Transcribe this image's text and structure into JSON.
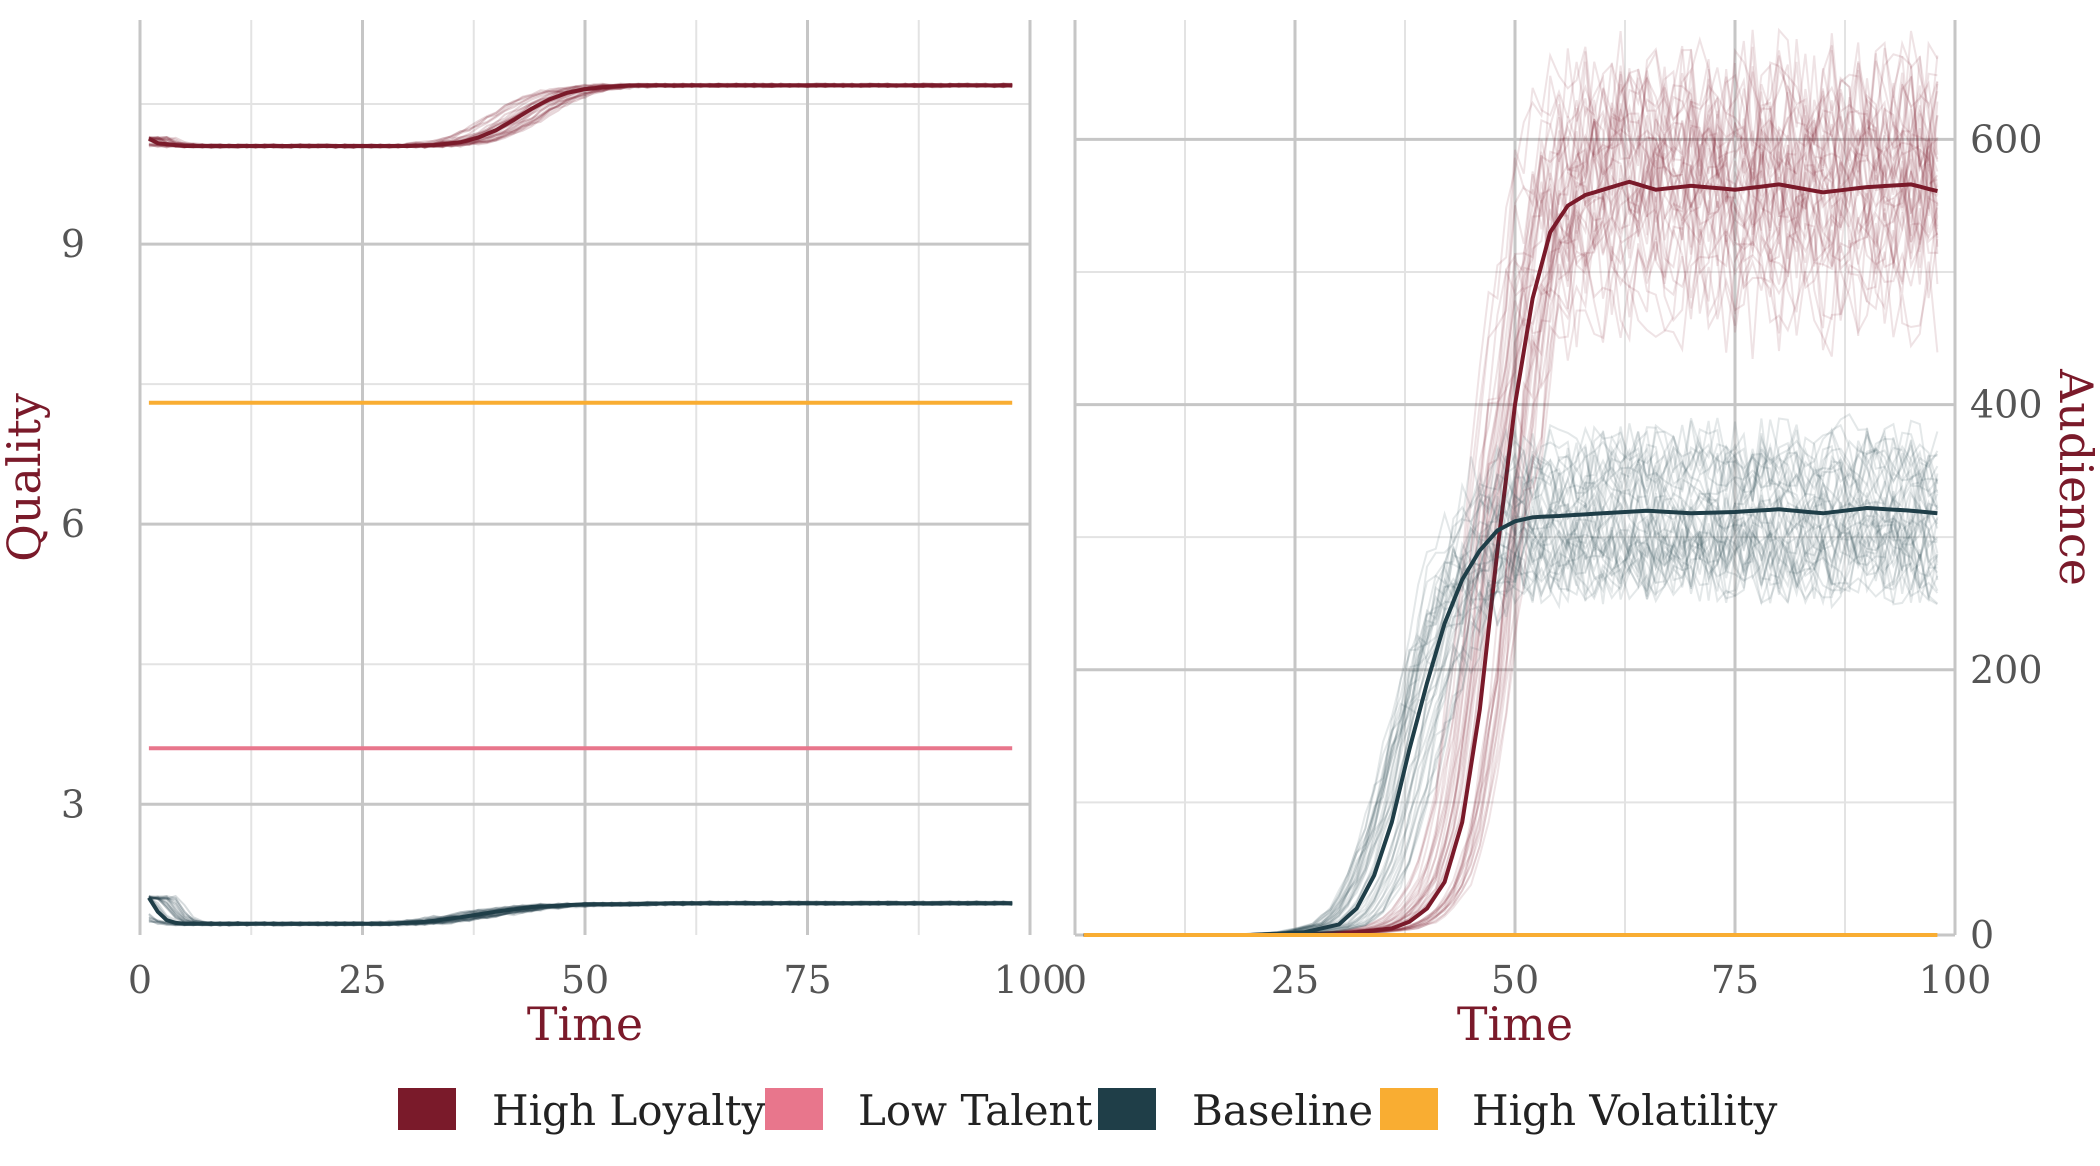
{
  "colors": {
    "High Loyalty": "#7a1a2a",
    "Low Talent": "#e8768c",
    "Baseline": "#1f3e48",
    "High Volatility": "#f9ad32",
    "axis_title": "#7a1a2a",
    "grid_major": "#c6c6c6",
    "grid_minor": "#e3e3e3"
  },
  "legend": {
    "items": [
      {
        "label": "High Loyalty",
        "color": "#7a1a2a"
      },
      {
        "label": "Low Talent",
        "color": "#e8768c"
      },
      {
        "label": "Baseline",
        "color": "#1f3e48"
      },
      {
        "label": "High Volatility",
        "color": "#f9ad32"
      }
    ]
  },
  "chart_data": [
    {
      "type": "line",
      "panel": "left",
      "xlabel": "Time",
      "ylabel": "Quality",
      "y_axis_side": "left",
      "xlim": [
        0,
        100
      ],
      "ylim": [
        1.6,
        11.4
      ],
      "x_ticks": [
        0,
        25,
        50,
        75,
        100
      ],
      "x_tick_labels": [
        "0",
        "25",
        "50",
        "75",
        "100"
      ],
      "y_ticks": [
        3,
        6,
        9
      ],
      "y_tick_labels": [
        "3",
        "6",
        "9"
      ],
      "grid": true,
      "replicate_bands": true,
      "series": [
        {
          "name": "High Loyalty",
          "x": [
            1,
            2,
            5,
            10,
            20,
            30,
            33,
            36,
            38,
            40,
            42,
            44,
            46,
            48,
            50,
            52,
            55,
            60,
            70,
            80,
            90,
            98
          ],
          "y": [
            10.13,
            10.08,
            10.05,
            10.05,
            10.05,
            10.05,
            10.06,
            10.09,
            10.14,
            10.22,
            10.33,
            10.45,
            10.55,
            10.62,
            10.66,
            10.68,
            10.7,
            10.7,
            10.7,
            10.7,
            10.7,
            10.7
          ]
        },
        {
          "name": "Low Talent",
          "x": [
            1,
            98
          ],
          "y": [
            3.6,
            3.6
          ]
        },
        {
          "name": "Baseline",
          "x": [
            1,
            2,
            3,
            4,
            5,
            10,
            20,
            28,
            32,
            36,
            40,
            44,
            48,
            50,
            55,
            60,
            70,
            80,
            90,
            98
          ],
          "y": [
            2.0,
            1.85,
            1.76,
            1.73,
            1.72,
            1.72,
            1.72,
            1.72,
            1.74,
            1.79,
            1.85,
            1.9,
            1.92,
            1.93,
            1.93,
            1.94,
            1.94,
            1.94,
            1.94,
            1.94
          ]
        },
        {
          "name": "High Volatility",
          "x": [
            1,
            98
          ],
          "y": [
            7.3,
            7.3
          ]
        }
      ]
    },
    {
      "type": "line",
      "panel": "right",
      "xlabel": "Time",
      "ylabel": "Audience",
      "y_axis_side": "right",
      "xlim": [
        0,
        100
      ],
      "ylim": [
        0,
        690
      ],
      "x_ticks": [
        0,
        25,
        50,
        75,
        100
      ],
      "x_tick_labels": [
        "0",
        "25",
        "50",
        "75",
        "100"
      ],
      "y_ticks": [
        0,
        200,
        400,
        600
      ],
      "y_tick_labels": [
        "0",
        "200",
        "400",
        "600"
      ],
      "grid": true,
      "replicate_bands": true,
      "series": [
        {
          "name": "High Loyalty",
          "x": [
            1,
            20,
            28,
            32,
            36,
            38,
            40,
            42,
            44,
            46,
            48,
            50,
            52,
            54,
            56,
            58,
            60,
            63,
            66,
            70,
            75,
            80,
            85,
            90,
            95,
            98
          ],
          "y": [
            0,
            0,
            1,
            2,
            5,
            10,
            20,
            40,
            85,
            170,
            290,
            400,
            480,
            530,
            550,
            558,
            562,
            568,
            562,
            565,
            562,
            566,
            560,
            564,
            566,
            561
          ]
        },
        {
          "name": "Baseline",
          "x": [
            1,
            20,
            26,
            30,
            32,
            34,
            36,
            38,
            40,
            42,
            44,
            46,
            48,
            50,
            52,
            55,
            60,
            65,
            70,
            75,
            80,
            85,
            90,
            95,
            98
          ],
          "y": [
            0,
            0,
            2,
            8,
            20,
            45,
            85,
            140,
            190,
            235,
            268,
            290,
            305,
            312,
            315,
            316,
            318,
            320,
            318,
            319,
            321,
            318,
            322,
            320,
            318
          ]
        },
        {
          "name": "High Volatility",
          "x": [
            1,
            98
          ],
          "y": [
            0,
            0
          ]
        }
      ]
    }
  ]
}
